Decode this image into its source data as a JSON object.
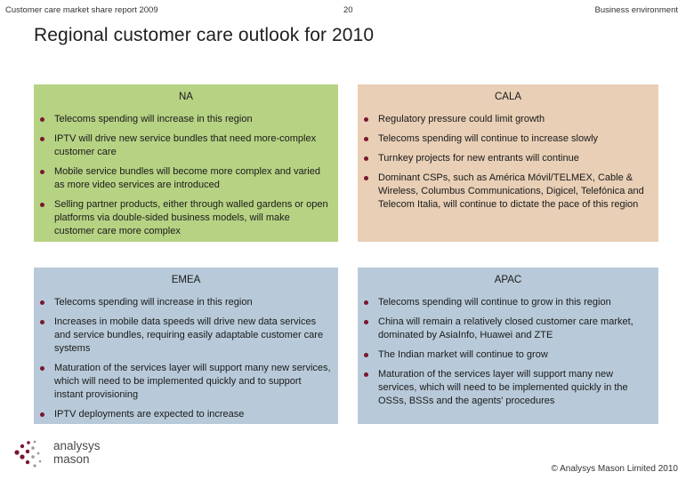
{
  "header": {
    "left": "Customer care market share report 2009",
    "page_number": "20",
    "right": "Business environment"
  },
  "title": "Regional customer care outlook for 2010",
  "panels": {
    "na": {
      "title": "NA",
      "color": "#b6d283",
      "bullets": [
        "Telecoms spending will increase in this region",
        "IPTV will drive new service bundles that need more-complex customer care",
        "Mobile service bundles will become more complex and varied as more video services are introduced",
        "Selling partner products, either through walled gardens or open platforms via double-sided business models, will make customer care more complex"
      ]
    },
    "cala": {
      "title": "CALA",
      "color": "#e8cfb6",
      "bullets": [
        "Regulatory pressure could limit growth",
        "Telecoms spending will continue to increase slowly",
        "Turnkey projects for new entrants will continue",
        "Dominant CSPs, such as América Móvil/TELMEX, Cable & Wireless, Columbus Communications, Digicel, Telefónica and Telecom Italia, will continue to dictate the pace of this region"
      ]
    },
    "emea": {
      "title": "EMEA",
      "color": "#b8cad9",
      "bullets": [
        "Telecoms spending will increase in this region",
        "Increases in mobile data speeds will drive new data services and service bundles, requiring easily adaptable customer care systems",
        "Maturation of the services layer will support many new services, which will need to be implemented quickly and to support instant provisioning",
        "IPTV deployments are expected to increase"
      ]
    },
    "apac": {
      "title": "APAC",
      "color": "#b8cad9",
      "bullets": [
        "Telecoms spending will continue to grow in this region",
        "China will remain a relatively closed customer care market, dominated by AsiaInfo, Huawei and ZTE",
        "The Indian market will continue to grow",
        "Maturation of the services layer will support many new services, which will need to be implemented quickly in the OSSs, BSSs and the agents' procedures"
      ]
    }
  },
  "logo": {
    "line1": "analysys",
    "line2": "mason",
    "accent": "#7a1630"
  },
  "copyright": "© Analysys Mason Limited 2010"
}
